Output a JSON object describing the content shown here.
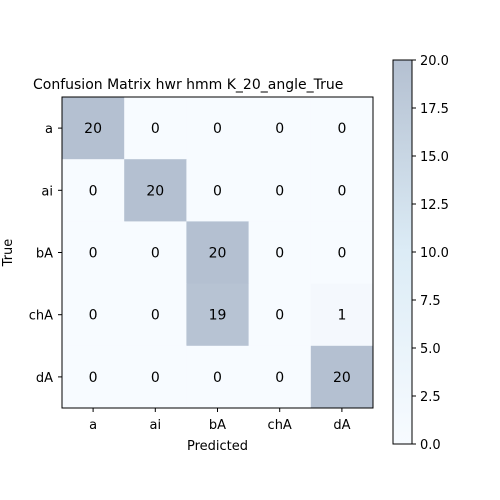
{
  "chart_data": {
    "type": "heatmap",
    "title": "Confusion Matrix hwr hmm K_20_angle_True",
    "xlabel": "Predicted",
    "ylabel": "True",
    "x_categories": [
      "a",
      "ai",
      "bA",
      "chA",
      "dA"
    ],
    "y_categories": [
      "a",
      "ai",
      "bA",
      "chA",
      "dA"
    ],
    "values": [
      [
        20,
        0,
        0,
        0,
        0
      ],
      [
        0,
        20,
        0,
        0,
        0
      ],
      [
        0,
        0,
        20,
        0,
        0
      ],
      [
        0,
        0,
        19,
        0,
        1
      ],
      [
        0,
        0,
        0,
        0,
        20
      ]
    ],
    "vmin": 0,
    "vmax": 20,
    "colorbar": {
      "ticks": [
        "0.0",
        "2.5",
        "5.0",
        "7.5",
        "10.0",
        "12.5",
        "15.0",
        "17.5",
        "20.0"
      ],
      "low_color": "#f7fbff",
      "high_color": "#b4c0d1",
      "placement": "right"
    },
    "grid": false
  }
}
